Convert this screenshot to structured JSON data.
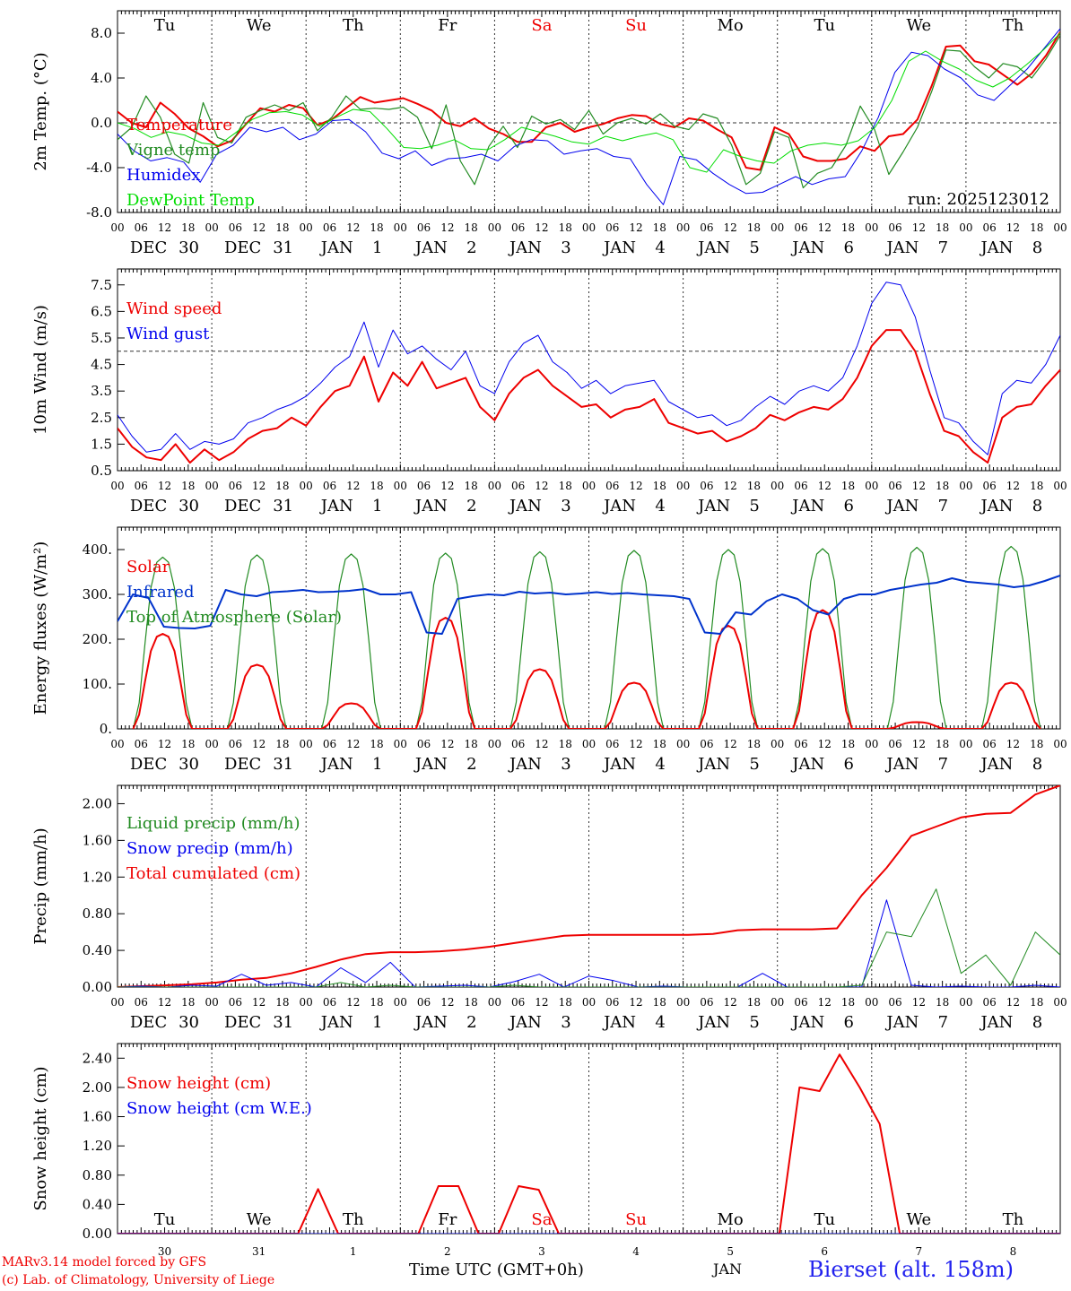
{
  "run_label": "run: 2025123012",
  "colors": {
    "red": "#ee0000",
    "green": "#228b22",
    "blue": "#0000ee",
    "lime": "#00dd00",
    "darkblue": "#0033cc"
  },
  "days": {
    "dow": [
      "Tu",
      "We",
      "Th",
      "Fr",
      "Sa",
      "Su",
      "Mo",
      "Tu",
      "We",
      "Th"
    ],
    "dow_colors": [
      "#000000",
      "#000000",
      "#000000",
      "#000000",
      "#ee0000",
      "#ee0000",
      "#000000",
      "#000000",
      "#000000",
      "#000000"
    ],
    "month": [
      "DEC",
      "DEC",
      "JAN",
      "JAN",
      "JAN",
      "JAN",
      "JAN",
      "JAN",
      "JAN",
      "JAN"
    ],
    "daynum": [
      "30",
      "31",
      "1",
      "2",
      "3",
      "4",
      "5",
      "6",
      "7",
      "8"
    ],
    "hour_labels": [
      "00",
      "06",
      "12",
      "18"
    ],
    "end_label": "00"
  },
  "footer": {
    "model_line": "MARv3.14 model forced by GFS",
    "lab_line": "(c) Lab. of Climatology, University of Liege",
    "axis_title": "Time UTC (GMT+0h)",
    "month_label": "JAN",
    "station": "Bierset (alt. 158m)"
  },
  "chart_data": [
    {
      "id": "temperature",
      "type": "line",
      "ylabel": "2m Temp. (°C)",
      "ylim": [
        -8,
        10
      ],
      "yticks": [
        "8.0",
        "4.0",
        "0.0",
        "-4.0",
        "-8.0"
      ],
      "ref_line": 0,
      "dow_position": "top",
      "legend": [
        "Temperature",
        "Vigne temp",
        "Humidex",
        "DewPoint Temp"
      ],
      "series": [
        {
          "name": "Temperature",
          "color": "#ee0000",
          "width": 2,
          "values": [
            1.0,
            0.0,
            -0.4,
            1.8,
            0.8,
            -0.5,
            -1.2,
            -2.1,
            -1.6,
            -0.1,
            1.3,
            1.0,
            1.6,
            1.3,
            -0.2,
            0.3,
            1.3,
            2.3,
            1.8,
            2.0,
            2.2,
            1.7,
            1.1,
            0.0,
            -0.3,
            0.4,
            -0.5,
            -1.0,
            -1.7,
            -1.7,
            -0.4,
            0.0,
            -0.8,
            -0.4,
            -0.1,
            0.4,
            0.7,
            0.6,
            -0.1,
            -0.4,
            0.4,
            0.2,
            -0.6,
            -1.3,
            -4.0,
            -4.2,
            -0.4,
            -1.0,
            -3.0,
            -3.4,
            -3.4,
            -3.2,
            -2.1,
            -2.5,
            -1.2,
            -1.0,
            0.3,
            3.3,
            6.8,
            6.9,
            5.5,
            5.2,
            4.3,
            3.4,
            4.4,
            6.0,
            8.1
          ]
        },
        {
          "name": "Vigne temp",
          "color": "#228b22",
          "width": 1.2,
          "values": [
            -1.5,
            -0.4,
            2.4,
            0.5,
            -2.8,
            -3.6,
            1.8,
            -1.3,
            -1.8,
            0.5,
            1.1,
            1.6,
            1.1,
            1.8,
            -0.7,
            0.5,
            2.4,
            1.2,
            1.3,
            1.2,
            1.4,
            0.5,
            -2.3,
            1.6,
            -3.4,
            -5.5,
            -2.1,
            -0.3,
            -2.2,
            0.6,
            -0.1,
            0.3,
            -0.6,
            1.1,
            -1.0,
            0.0,
            0.4,
            -0.1,
            0.8,
            -0.3,
            -0.6,
            0.8,
            0.4,
            -2.0,
            -5.5,
            -4.5,
            -0.8,
            -1.3,
            -5.8,
            -4.5,
            -4.0,
            -2.0,
            1.5,
            -0.6,
            -4.6,
            -2.6,
            -0.4,
            2.8,
            6.5,
            6.4,
            5.0,
            4.0,
            5.3,
            5.0,
            4.0,
            5.7,
            7.8
          ]
        },
        {
          "name": "Humidex",
          "color": "#0000ee",
          "width": 1,
          "values": [
            -1.0,
            -2.5,
            -3.4,
            -3.1,
            -3.5,
            -5.3,
            -2.8,
            -2.0,
            -0.4,
            -0.8,
            -0.4,
            -1.5,
            -1.0,
            0.2,
            0.3,
            -0.8,
            -2.7,
            -3.2,
            -2.5,
            -3.8,
            -3.2,
            -3.1,
            -2.8,
            -3.4,
            -2.1,
            -1.5,
            -1.6,
            -2.8,
            -2.5,
            -2.3,
            -3.0,
            -3.2,
            -5.5,
            -7.3,
            -3.0,
            -3.3,
            -4.5,
            -5.5,
            -6.3,
            -6.2,
            -5.5,
            -4.8,
            -5.5,
            -5.0,
            -4.8,
            -2.5,
            0.5,
            4.5,
            6.3,
            6.0,
            4.8,
            4.0,
            2.5,
            2.0,
            3.4,
            4.8,
            6.6,
            8.4
          ]
        },
        {
          "name": "DewPoint Temp",
          "color": "#00dd00",
          "width": 1,
          "values": [
            0.0,
            -0.5,
            -1.3,
            -0.8,
            -1.1,
            -1.8,
            -2.0,
            -0.9,
            0.3,
            0.9,
            1.0,
            0.7,
            -0.3,
            0.5,
            1.2,
            1.0,
            -0.5,
            -2.2,
            -2.3,
            -2.0,
            -1.5,
            -2.3,
            -2.4,
            -1.5,
            -0.4,
            -0.8,
            -1.2,
            -1.7,
            -1.9,
            -1.2,
            -1.6,
            -1.2,
            -0.9,
            -1.5,
            -4.0,
            -4.4,
            -2.4,
            -3.0,
            -3.4,
            -3.6,
            -2.5,
            -2.0,
            -1.8,
            -2.0,
            -1.6,
            -0.4,
            2.0,
            5.5,
            6.4,
            5.5,
            4.8,
            3.8,
            3.2,
            4.0,
            5.2,
            6.5,
            8.0
          ]
        }
      ]
    },
    {
      "id": "wind",
      "type": "line",
      "ylabel": "10m Wind (m/s)",
      "ylim": [
        0.5,
        8.1
      ],
      "yticks": [
        "7.5",
        "6.5",
        "5.5",
        "4.5",
        "3.5",
        "2.5",
        "1.5",
        "0.5"
      ],
      "ref_line": 5.0,
      "legend": [
        "Wind speed",
        "Wind gust"
      ],
      "series": [
        {
          "name": "Wind speed",
          "color": "#ee0000",
          "width": 2,
          "values": [
            2.1,
            1.4,
            1.0,
            0.9,
            1.5,
            0.8,
            1.3,
            0.9,
            1.2,
            1.7,
            2.0,
            2.1,
            2.5,
            2.2,
            2.9,
            3.5,
            3.7,
            4.8,
            3.1,
            4.2,
            3.7,
            4.6,
            3.6,
            3.8,
            4.0,
            2.9,
            2.4,
            3.4,
            4.0,
            4.3,
            3.7,
            3.3,
            2.9,
            3.0,
            2.5,
            2.8,
            2.9,
            3.2,
            2.3,
            2.1,
            1.9,
            2.0,
            1.6,
            1.8,
            2.1,
            2.6,
            2.4,
            2.7,
            2.9,
            2.8,
            3.2,
            4.0,
            5.2,
            5.8,
            5.8,
            5.0,
            3.4,
            2.0,
            1.8,
            1.2,
            0.8,
            2.5,
            2.9,
            3.0,
            3.7,
            4.3
          ]
        },
        {
          "name": "Wind gust",
          "color": "#0000ee",
          "width": 1,
          "values": [
            2.6,
            1.8,
            1.2,
            1.3,
            1.9,
            1.3,
            1.6,
            1.5,
            1.7,
            2.3,
            2.5,
            2.8,
            3.0,
            3.3,
            3.8,
            4.4,
            4.8,
            6.1,
            4.4,
            5.8,
            4.9,
            5.2,
            4.7,
            4.3,
            5.0,
            3.7,
            3.4,
            4.6,
            5.3,
            5.6,
            4.6,
            4.2,
            3.6,
            3.9,
            3.4,
            3.7,
            3.8,
            3.9,
            3.1,
            2.8,
            2.5,
            2.6,
            2.2,
            2.4,
            2.9,
            3.3,
            3.0,
            3.5,
            3.7,
            3.5,
            4.0,
            5.2,
            6.8,
            7.6,
            7.5,
            6.3,
            4.3,
            2.5,
            2.3,
            1.6,
            1.1,
            3.4,
            3.9,
            3.8,
            4.5,
            5.6
          ]
        }
      ]
    },
    {
      "id": "energy",
      "type": "line",
      "ylabel": "Energy fluxes (W/m²)",
      "ylim": [
        0,
        450
      ],
      "yticks": [
        "400.",
        "300.",
        "200.",
        "100.",
        "0."
      ],
      "legend": [
        "Solar",
        "Infrared",
        "Top of Atmosphere (Solar)"
      ],
      "series": [
        {
          "name": "Top of Atmosphere (Solar)",
          "color": "#228b22",
          "width": 1.2,
          "type": "daily_bell",
          "peaks": [
            383,
            388,
            390,
            392,
            395,
            398,
            400,
            402,
            405,
            407
          ]
        },
        {
          "name": "Solar",
          "color": "#ee0000",
          "width": 2,
          "type": "daily_bell",
          "peaks": [
            212,
            143,
            57,
            248,
            133,
            103,
            230,
            265,
            15,
            103
          ]
        },
        {
          "name": "Infrared",
          "color": "#0033cc",
          "width": 2,
          "values": [
            240,
            300,
            292,
            228,
            225,
            224,
            230,
            310,
            300,
            296,
            305,
            307,
            310,
            305,
            306,
            308,
            312,
            300,
            300,
            305,
            215,
            212,
            290,
            296,
            300,
            298,
            306,
            302,
            304,
            300,
            302,
            305,
            301,
            303,
            300,
            298,
            296,
            290,
            215,
            212,
            260,
            255,
            285,
            300,
            290,
            265,
            255,
            290,
            300,
            300,
            310,
            316,
            322,
            326,
            336,
            328,
            325,
            322,
            316,
            320,
            330,
            342
          ]
        }
      ]
    },
    {
      "id": "precip",
      "type": "line",
      "ylabel": "Precip (mm/h)",
      "ylim": [
        0,
        2.2
      ],
      "yticks": [
        "2.00",
        "1.60",
        "1.20",
        "0.80",
        "0.40",
        "0.00"
      ],
      "legend": [
        "Liquid precip (mm/h)",
        "Snow precip (mm/h)",
        "Total cumulated (cm)"
      ],
      "series": [
        {
          "name": "Total cumulated (cm)",
          "color": "#ee0000",
          "width": 2,
          "values": [
            0.0,
            0.01,
            0.02,
            0.03,
            0.05,
            0.08,
            0.1,
            0.15,
            0.22,
            0.3,
            0.36,
            0.38,
            0.38,
            0.39,
            0.41,
            0.44,
            0.48,
            0.52,
            0.56,
            0.57,
            0.57,
            0.57,
            0.57,
            0.57,
            0.58,
            0.62,
            0.63,
            0.63,
            0.63,
            0.64,
            1.0,
            1.3,
            1.65,
            1.75,
            1.85,
            1.89,
            1.9,
            2.1,
            2.2
          ]
        },
        {
          "name": "Snow precip (mm/h)",
          "color": "#0000ee",
          "width": 1,
          "values": [
            0,
            0.01,
            0,
            0.02,
            0.01,
            0.14,
            0.02,
            0.05,
            0,
            0.21,
            0.05,
            0.27,
            0,
            0.01,
            0.02,
            0,
            0.06,
            0.14,
            0,
            0.12,
            0.07,
            0,
            0.01,
            0,
            0,
            0,
            0.15,
            0,
            0,
            0,
            0,
            0.95,
            0.02,
            0,
            0.01,
            0,
            0,
            0.02,
            0
          ]
        },
        {
          "name": "Liquid precip (mm/h)",
          "color": "#228b22",
          "width": 1,
          "values": [
            0,
            0,
            0,
            0,
            0,
            0,
            0,
            0,
            0,
            0.05,
            0,
            0.02,
            0,
            0,
            0,
            0,
            0.02,
            0,
            0,
            0,
            0,
            0,
            0,
            0,
            0,
            0,
            0,
            0,
            0,
            0,
            0.02,
            0.6,
            0.55,
            1.07,
            0.15,
            0.35,
            0.02,
            0.6,
            0.35
          ]
        }
      ]
    },
    {
      "id": "snow",
      "type": "line",
      "ylabel": "Snow height (cm)",
      "ylim": [
        0,
        2.6
      ],
      "yticks": [
        "2.40",
        "2.00",
        "1.60",
        "1.20",
        "0.80",
        "0.40",
        "0.00"
      ],
      "dow_position": "bottom",
      "legend": [
        "Snow height (cm)",
        "Snow height (cm W.E.)"
      ],
      "series": [
        {
          "name": "Snow height (cm)",
          "color": "#ee0000",
          "width": 2,
          "values": [
            0,
            0,
            0,
            0,
            0,
            0,
            0,
            0,
            0,
            0,
            0.61,
            0,
            0,
            0,
            0,
            0,
            0.65,
            0.65,
            0,
            0,
            0.65,
            0.6,
            0,
            0,
            0,
            0,
            0,
            0,
            0,
            0,
            0,
            0,
            0,
            0,
            2.0,
            1.95,
            2.45,
            2.0,
            1.5,
            0,
            0,
            0,
            0,
            0,
            0,
            0,
            0,
            0
          ]
        },
        {
          "name": "Snow height (cm W.E.)",
          "color": "#0000ee",
          "width": 1,
          "values": [
            0,
            0,
            0,
            0,
            0,
            0,
            0,
            0,
            0,
            0,
            0,
            0,
            0,
            0,
            0,
            0,
            0,
            0,
            0,
            0,
            0,
            0,
            0,
            0,
            0,
            0,
            0,
            0,
            0,
            0,
            0,
            0,
            0,
            0,
            0,
            0,
            0,
            0,
            0,
            0,
            0,
            0,
            0,
            0,
            0,
            0,
            0,
            0
          ]
        }
      ]
    }
  ]
}
